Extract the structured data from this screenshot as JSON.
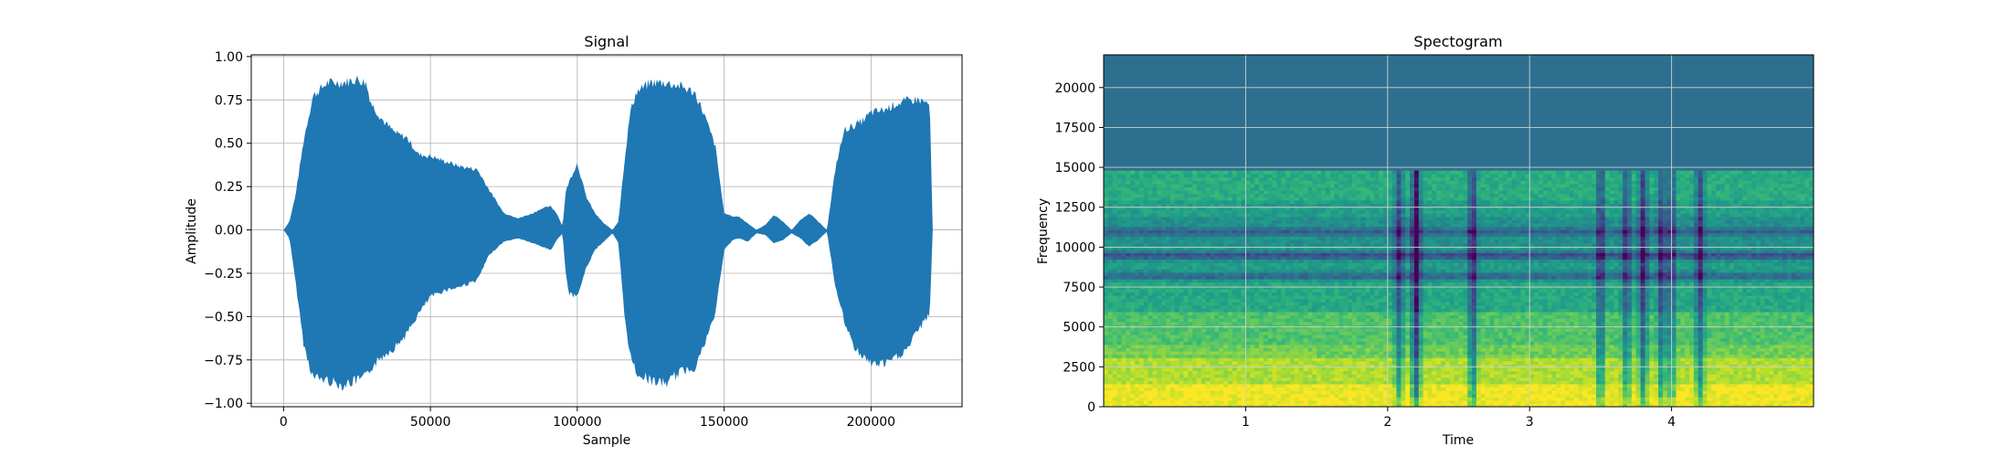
{
  "chart_data": [
    {
      "type": "area",
      "title": "Signal",
      "xlabel": "Sample",
      "ylabel": "Amplitude",
      "xlim": [
        -11000,
        231000
      ],
      "ylim": [
        -1.02,
        1.01
      ],
      "grid": true,
      "color": "#1f77b4",
      "x_ticks": [
        0,
        50000,
        100000,
        150000,
        200000
      ],
      "x_tick_labels": [
        "0",
        "50000",
        "100000",
        "150000",
        "200000"
      ],
      "y_ticks": [
        1.0,
        0.75,
        0.5,
        0.25,
        0.0,
        -0.25,
        -0.5,
        -0.75,
        -1.0
      ],
      "y_tick_labels": [
        "1.00",
        "0.75",
        "0.50",
        "0.25",
        "0.00",
        "−0.25",
        "−0.50",
        "−0.75",
        "−1.00"
      ],
      "envelope": {
        "x": [
          0,
          2000,
          4000,
          7000,
          10000,
          15000,
          20000,
          25000,
          28000,
          30000,
          34000,
          38000,
          42000,
          46000,
          50000,
          55000,
          60000,
          66000,
          70000,
          75000,
          80000,
          85000,
          88000,
          91000,
          93000,
          95000,
          96000,
          97000,
          100000,
          103000,
          106000,
          109000,
          112000,
          114000,
          116000,
          118000,
          120000,
          125000,
          130000,
          135000,
          140000,
          143000,
          147000,
          150000,
          153000,
          155000,
          158000,
          161000,
          164000,
          167000,
          170000,
          173000,
          176000,
          179000,
          182000,
          185000,
          188000,
          191000,
          194000,
          197000,
          200000,
          205000,
          208000,
          212000,
          216000,
          220000,
          221000
        ],
        "upper": [
          0.0,
          0.05,
          0.2,
          0.55,
          0.8,
          0.88,
          0.88,
          0.9,
          0.88,
          0.75,
          0.65,
          0.58,
          0.55,
          0.45,
          0.44,
          0.41,
          0.38,
          0.36,
          0.24,
          0.1,
          0.07,
          0.1,
          0.13,
          0.14,
          0.1,
          0.02,
          0.22,
          0.28,
          0.4,
          0.2,
          0.1,
          0.04,
          0.0,
          0.05,
          0.4,
          0.7,
          0.82,
          0.88,
          0.88,
          0.86,
          0.82,
          0.7,
          0.5,
          0.1,
          0.08,
          0.08,
          0.04,
          0.0,
          0.03,
          0.09,
          0.05,
          0.0,
          0.06,
          0.1,
          0.05,
          0.0,
          0.38,
          0.6,
          0.62,
          0.65,
          0.7,
          0.72,
          0.75,
          0.77,
          0.78,
          0.75,
          0.0
        ],
        "lower": [
          0.0,
          -0.05,
          -0.3,
          -0.7,
          -0.88,
          -0.9,
          -0.93,
          -0.9,
          -0.88,
          -0.82,
          -0.75,
          -0.7,
          -0.62,
          -0.5,
          -0.4,
          -0.36,
          -0.34,
          -0.3,
          -0.15,
          -0.07,
          -0.05,
          -0.08,
          -0.1,
          -0.12,
          -0.06,
          -0.02,
          -0.25,
          -0.38,
          -0.4,
          -0.23,
          -0.12,
          -0.07,
          -0.02,
          -0.08,
          -0.5,
          -0.75,
          -0.85,
          -0.9,
          -0.92,
          -0.85,
          -0.82,
          -0.7,
          -0.5,
          -0.12,
          -0.06,
          -0.05,
          -0.07,
          -0.02,
          -0.03,
          -0.08,
          -0.06,
          -0.02,
          -0.05,
          -0.1,
          -0.06,
          -0.01,
          -0.35,
          -0.55,
          -0.7,
          -0.75,
          -0.8,
          -0.8,
          -0.77,
          -0.72,
          -0.6,
          -0.5,
          0.0
        ]
      }
    },
    {
      "type": "heatmap",
      "title": "Spectogram",
      "xlabel": "Time",
      "ylabel": "Frequency",
      "xlim": [
        0,
        5
      ],
      "ylim": [
        0,
        22050
      ],
      "grid": true,
      "x_ticks": [
        1,
        2,
        3,
        4
      ],
      "x_tick_labels": [
        "1",
        "2",
        "3",
        "4"
      ],
      "y_ticks": [
        0,
        2500,
        5000,
        7500,
        10000,
        12500,
        15000,
        17500,
        20000
      ],
      "y_tick_labels": [
        "0",
        "2500",
        "5000",
        "7500",
        "10000",
        "12500",
        "15000",
        "17500",
        "20000"
      ],
      "colormap": "viridis",
      "background_color": "#2d6f8e",
      "bands": {
        "freq_edges": [
          0,
          1500,
          3000,
          4000,
          6000,
          8000,
          10000,
          12000,
          13000,
          14800,
          22050
        ],
        "intensity": [
          0.98,
          0.88,
          0.78,
          0.72,
          0.6,
          0.55,
          0.5,
          0.56,
          0.62,
          0.05
        ]
      },
      "time_dips": [
        {
          "time": 2.08,
          "depth": 0.35
        },
        {
          "time": 2.2,
          "depth": 0.6
        },
        {
          "time": 2.6,
          "depth": 0.45
        },
        {
          "time": 3.5,
          "depth": 0.4
        },
        {
          "time": 3.68,
          "depth": 0.35
        },
        {
          "time": 3.8,
          "depth": 0.45
        },
        {
          "time": 3.93,
          "depth": 0.4
        },
        {
          "time": 4.0,
          "depth": 0.35
        },
        {
          "time": 4.2,
          "depth": 0.4
        }
      ],
      "freq_stripes": [
        {
          "freq": 9500,
          "depth": 0.35
        },
        {
          "freq": 8200,
          "depth": 0.25
        },
        {
          "freq": 11000,
          "depth": 0.2
        }
      ]
    }
  ]
}
